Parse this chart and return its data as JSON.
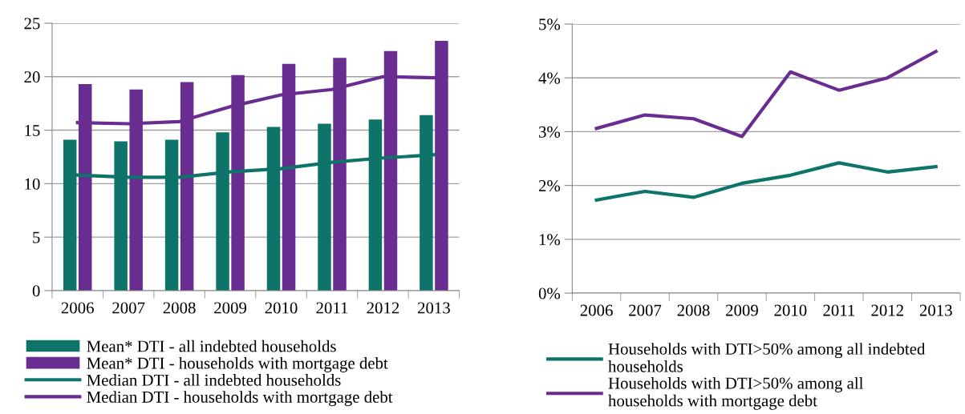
{
  "chart_data": [
    {
      "type": "bar",
      "categories": [
        "2006",
        "2007",
        "2008",
        "2009",
        "2010",
        "2011",
        "2012",
        "2013"
      ],
      "ylim": [
        0,
        25
      ],
      "yticks": [
        0,
        5,
        10,
        15,
        20,
        25
      ],
      "grid": "y",
      "legend": "bottom",
      "series": [
        {
          "name": "Mean* DTI - all indebted households",
          "color": "#0e7469",
          "values": [
            14.1,
            13.95,
            14.1,
            14.8,
            15.3,
            15.6,
            16.0,
            16.4
          ]
        },
        {
          "name": "Mean* DTI - households with mortgage debt",
          "color": "#692d91",
          "values": [
            19.3,
            18.8,
            19.5,
            20.15,
            21.2,
            21.75,
            22.4,
            23.35
          ]
        },
        {
          "name": "Median DTI - all indebted households",
          "type": "line",
          "color": "#0e7469",
          "values": [
            10.8,
            10.6,
            10.6,
            11.1,
            11.4,
            12.0,
            12.4,
            12.7
          ]
        },
        {
          "name": "Median DTI - households with mortgage debt",
          "type": "line",
          "color": "#692d91",
          "values": [
            15.7,
            15.6,
            15.8,
            17.2,
            18.3,
            18.8,
            20.0,
            19.9
          ]
        }
      ]
    },
    {
      "type": "line",
      "categories": [
        "2006",
        "2007",
        "2008",
        "2009",
        "2010",
        "2011",
        "2012",
        "2013"
      ],
      "ylim": [
        0,
        5
      ],
      "yticks": [
        {
          "value": 0,
          "label": "0%"
        },
        {
          "value": 1,
          "label": "1%"
        },
        {
          "value": 2,
          "label": "2%"
        },
        {
          "value": 3,
          "label": "3%"
        },
        {
          "value": 4,
          "label": "4%"
        },
        {
          "value": 5,
          "label": "5%"
        }
      ],
      "grid": "y",
      "legend": "bottom",
      "series": [
        {
          "name": "Households with DTI>50% among all indebted\nhouseholds",
          "color": "#0e7469",
          "values": [
            1.73,
            1.89,
            1.78,
            2.04,
            2.19,
            2.42,
            2.25,
            2.35
          ]
        },
        {
          "name": "Households with DTI>50% among all\nhouseholds with mortgage debt",
          "color": "#692d91",
          "values": [
            3.06,
            3.31,
            3.24,
            2.91,
            4.11,
            3.77,
            4.0,
            4.49
          ]
        }
      ]
    }
  ]
}
